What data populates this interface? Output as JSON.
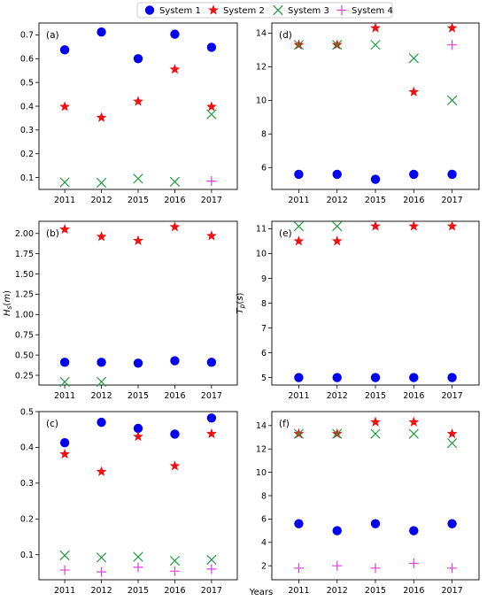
{
  "colors": {
    "System 1": "#0000ee",
    "System 2": "#ee1111",
    "System 3": "#1f9a3e",
    "System 4": "#dd44dd"
  },
  "legend": [
    {
      "name": "System 1",
      "marker": "circle"
    },
    {
      "name": "System 2",
      "marker": "star"
    },
    {
      "name": "System 3",
      "marker": "x"
    },
    {
      "name": "System 4",
      "marker": "plus"
    }
  ],
  "xlabel": "Years",
  "chart_data": [
    {
      "type": "scatter",
      "panel": "(a)",
      "ylabel": "",
      "categories": [
        "2011",
        "2012",
        "2015",
        "2016",
        "2017"
      ],
      "ylim": [
        0.05,
        0.75
      ],
      "yticks": [
        "0.1",
        "0.2",
        "0.3",
        "0.4",
        "0.5",
        "0.6",
        "0.7"
      ],
      "series": [
        {
          "name": "System 1",
          "values": [
            0.637,
            0.712,
            0.6,
            0.703,
            0.648
          ]
        },
        {
          "name": "System 2",
          "values": [
            0.398,
            0.352,
            0.42,
            0.555,
            0.398
          ]
        },
        {
          "name": "System 3",
          "values": [
            0.08,
            0.078,
            0.095,
            0.082,
            0.366
          ]
        },
        {
          "name": "System 4",
          "values": [
            null,
            null,
            null,
            null,
            0.085
          ]
        }
      ]
    },
    {
      "type": "scatter",
      "panel": "(d)",
      "ylabel": "",
      "categories": [
        "2011",
        "2012",
        "2015",
        "2016",
        "2017"
      ],
      "ylim": [
        4.7,
        14.6
      ],
      "yticks": [
        "6",
        "8",
        "10",
        "12",
        "14"
      ],
      "series": [
        {
          "name": "System 1",
          "values": [
            5.6,
            5.6,
            5.3,
            5.6,
            5.6
          ]
        },
        {
          "name": "System 2",
          "values": [
            13.3,
            13.3,
            14.3,
            10.5,
            14.3
          ]
        },
        {
          "name": "System 3",
          "values": [
            13.3,
            13.3,
            13.3,
            12.5,
            10.0
          ]
        },
        {
          "name": "System 4",
          "values": [
            null,
            null,
            null,
            null,
            13.3
          ]
        }
      ]
    },
    {
      "type": "scatter",
      "panel": "(b)",
      "ylabel": "Hs(m)",
      "categories": [
        "2011",
        "2012",
        "2015",
        "2016",
        "2017"
      ],
      "ylim": [
        0.13,
        2.15
      ],
      "yticks": [
        "0.25",
        "0.50",
        "0.75",
        "1.00",
        "1.25",
        "1.50",
        "1.75",
        "2.00"
      ],
      "series": [
        {
          "name": "System 1",
          "values": [
            0.41,
            0.41,
            0.4,
            0.43,
            0.41
          ]
        },
        {
          "name": "System 2",
          "values": [
            2.05,
            1.96,
            1.91,
            2.08,
            1.97
          ]
        },
        {
          "name": "System 3",
          "values": [
            0.17,
            0.17,
            null,
            null,
            null
          ]
        }
      ]
    },
    {
      "type": "scatter",
      "panel": "(e)",
      "ylabel": "Tp(s)",
      "categories": [
        "2011",
        "2012",
        "2015",
        "2016",
        "2017"
      ],
      "ylim": [
        4.7,
        11.3
      ],
      "yticks": [
        "5",
        "6",
        "7",
        "8",
        "9",
        "10",
        "11"
      ],
      "series": [
        {
          "name": "System 1",
          "values": [
            5.0,
            5.0,
            5.0,
            5.0,
            5.0
          ]
        },
        {
          "name": "System 2",
          "values": [
            10.5,
            10.5,
            11.1,
            11.1,
            11.1
          ]
        },
        {
          "name": "System 3",
          "values": [
            11.1,
            11.1,
            null,
            null,
            null
          ]
        }
      ]
    },
    {
      "type": "scatter",
      "panel": "(c)",
      "ylabel": "",
      "categories": [
        "2011",
        "2012",
        "2015",
        "2016",
        "2017"
      ],
      "ylim": [
        0.03,
        0.5
      ],
      "yticks": [
        "0.1",
        "0.2",
        "0.3",
        "0.4",
        "0.5"
      ],
      "series": [
        {
          "name": "System 1",
          "values": [
            0.413,
            0.47,
            0.453,
            0.437,
            0.482
          ]
        },
        {
          "name": "System 2",
          "values": [
            0.381,
            0.332,
            0.43,
            0.348,
            0.438
          ]
        },
        {
          "name": "System 3",
          "values": [
            0.098,
            0.092,
            0.094,
            0.083,
            0.086
          ]
        },
        {
          "name": "System 4",
          "values": [
            0.057,
            0.052,
            0.065,
            0.054,
            0.06
          ]
        }
      ]
    },
    {
      "type": "scatter",
      "panel": "(f)",
      "ylabel": "",
      "categories": [
        "2011",
        "2012",
        "2015",
        "2016",
        "2017"
      ],
      "ylim": [
        0.8,
        15.2
      ],
      "yticks": [
        "2",
        "4",
        "6",
        "8",
        "10",
        "12",
        "14"
      ],
      "series": [
        {
          "name": "System 1",
          "values": [
            5.6,
            5.0,
            5.6,
            5.0,
            5.6
          ]
        },
        {
          "name": "System 2",
          "values": [
            13.3,
            13.3,
            14.3,
            14.3,
            13.3
          ]
        },
        {
          "name": "System 3",
          "values": [
            13.3,
            13.3,
            13.3,
            13.3,
            12.5
          ]
        },
        {
          "name": "System 4",
          "values": [
            1.8,
            2.0,
            1.8,
            2.2,
            1.8
          ]
        }
      ]
    }
  ]
}
